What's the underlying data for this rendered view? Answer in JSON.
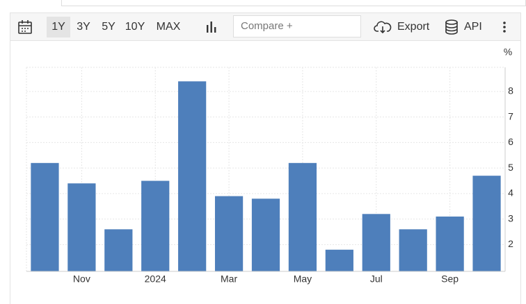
{
  "toolbar": {
    "ranges": [
      "1Y",
      "3Y",
      "5Y",
      "10Y",
      "MAX"
    ],
    "active_range": 0,
    "compare": "Compare +",
    "export": "Export",
    "api": "API"
  },
  "chart_data": {
    "type": "bar",
    "ylabel": "%",
    "categories": [
      null,
      "Nov",
      null,
      "2024",
      null,
      "Mar",
      null,
      "May",
      null,
      "Jul",
      null,
      "Sep",
      null
    ],
    "values": [
      5.2,
      4.4,
      2.6,
      4.5,
      8.4,
      3.9,
      3.8,
      5.2,
      1.8,
      3.2,
      2.6,
      3.1,
      4.7
    ],
    "color": "#4e7fbb",
    "ylim": [
      0.95,
      8.95
    ],
    "yticks": [
      2,
      3,
      4,
      5,
      6,
      7,
      8
    ],
    "grid": true
  }
}
